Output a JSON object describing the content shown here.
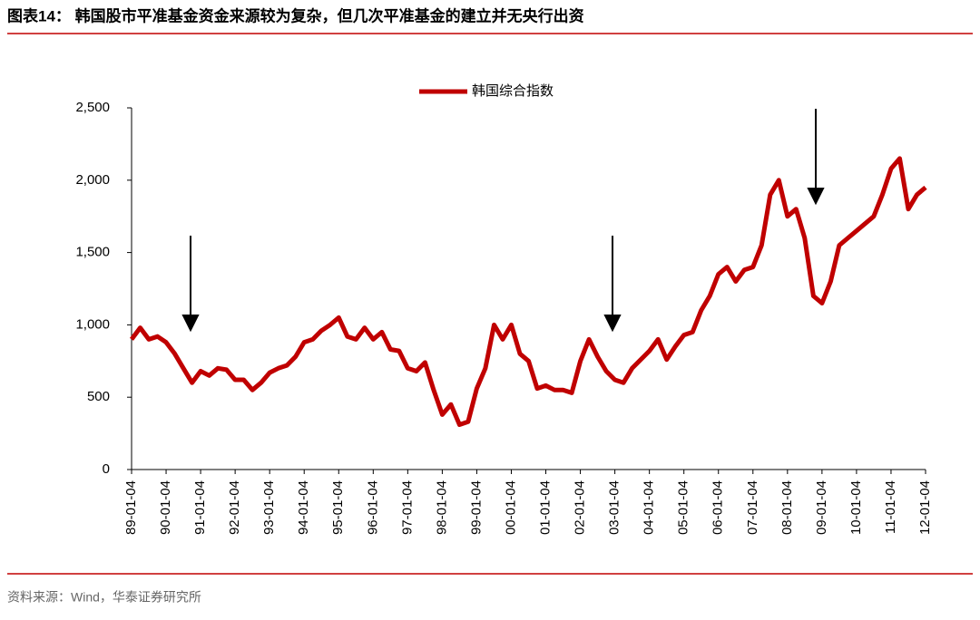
{
  "chart_data": {
    "type": "line",
    "title": "图表14：  韩国股市平准基金资金来源较为复杂，但几次平准基金的建立并无央行出资",
    "source": "资料来源：Wind，华泰证券研究所",
    "x": [
      "89-01-04",
      "89-04-04",
      "89-07-04",
      "89-10-04",
      "90-01-04",
      "90-04-04",
      "90-07-04",
      "90-10-04",
      "91-01-04",
      "91-04-04",
      "91-07-04",
      "91-10-04",
      "92-01-04",
      "92-04-04",
      "92-07-04",
      "92-10-04",
      "93-01-04",
      "93-04-04",
      "93-07-04",
      "93-10-04",
      "94-01-04",
      "94-04-04",
      "94-07-04",
      "94-10-04",
      "95-01-04",
      "95-04-04",
      "95-07-04",
      "95-10-04",
      "96-01-04",
      "96-04-04",
      "96-07-04",
      "96-10-04",
      "97-01-04",
      "97-04-04",
      "97-07-04",
      "97-10-04",
      "98-01-04",
      "98-04-04",
      "98-07-04",
      "98-10-04",
      "99-01-04",
      "99-04-04",
      "99-07-04",
      "99-10-04",
      "00-01-04",
      "00-04-04",
      "00-07-04",
      "00-10-04",
      "01-01-04",
      "01-04-04",
      "01-07-04",
      "01-10-04",
      "02-01-04",
      "02-04-04",
      "02-07-04",
      "02-10-04",
      "03-01-04",
      "03-04-04",
      "03-07-04",
      "03-10-04",
      "04-01-04",
      "04-04-04",
      "04-07-04",
      "04-10-04",
      "05-01-04",
      "05-04-04",
      "05-07-04",
      "05-10-04",
      "06-01-04",
      "06-04-04",
      "06-07-04",
      "06-10-04",
      "07-01-04",
      "07-04-04",
      "07-07-04",
      "07-10-04",
      "08-01-04",
      "08-04-04",
      "08-07-04",
      "08-10-04",
      "09-01-04",
      "09-04-04",
      "09-07-04",
      "09-10-04",
      "10-01-04",
      "10-04-04",
      "10-07-04",
      "10-10-04",
      "11-01-04",
      "11-04-04",
      "11-07-04",
      "11-10-04",
      "12-01-04"
    ],
    "series": [
      {
        "name": "韩国综合指数",
        "color": "#c00000",
        "values": [
          900,
          980,
          900,
          920,
          880,
          800,
          700,
          600,
          680,
          650,
          700,
          690,
          620,
          620,
          550,
          600,
          670,
          700,
          720,
          780,
          880,
          900,
          960,
          1000,
          1050,
          920,
          900,
          980,
          900,
          950,
          830,
          820,
          700,
          680,
          740,
          550,
          380,
          450,
          310,
          330,
          560,
          700,
          1000,
          900,
          1000,
          800,
          750,
          560,
          580,
          550,
          550,
          530,
          750,
          900,
          780,
          680,
          620,
          600,
          700,
          760,
          820,
          900,
          760,
          850,
          930,
          950,
          1100,
          1200,
          1350,
          1400,
          1300,
          1380,
          1400,
          1550,
          1900,
          2000,
          1750,
          1800,
          1600,
          1200,
          1150,
          1300,
          1550,
          1600,
          1650,
          1700,
          1750,
          1900,
          2080,
          2150,
          1800,
          1900,
          1950
        ]
      }
    ],
    "xticks": [
      "89-01-04",
      "90-01-04",
      "91-01-04",
      "92-01-04",
      "93-01-04",
      "94-01-04",
      "95-01-04",
      "96-01-04",
      "97-01-04",
      "98-01-04",
      "99-01-04",
      "00-01-04",
      "01-01-04",
      "02-01-04",
      "03-01-04",
      "04-01-04",
      "05-01-04",
      "06-01-04",
      "07-01-04",
      "08-01-04",
      "09-01-04",
      "10-01-04",
      "11-01-04",
      "12-01-04"
    ],
    "xlim": [
      "89-01-04",
      "12-01-04"
    ],
    "ylim": [
      0,
      2500
    ],
    "yticks": [
      0,
      500,
      {
        "value": 1000,
        "label": "1,000"
      },
      {
        "value": 1500,
        "label": "1,500"
      },
      {
        "value": 2000,
        "label": "2,000"
      },
      {
        "value": 2500,
        "label": "2,500"
      }
    ]
  }
}
